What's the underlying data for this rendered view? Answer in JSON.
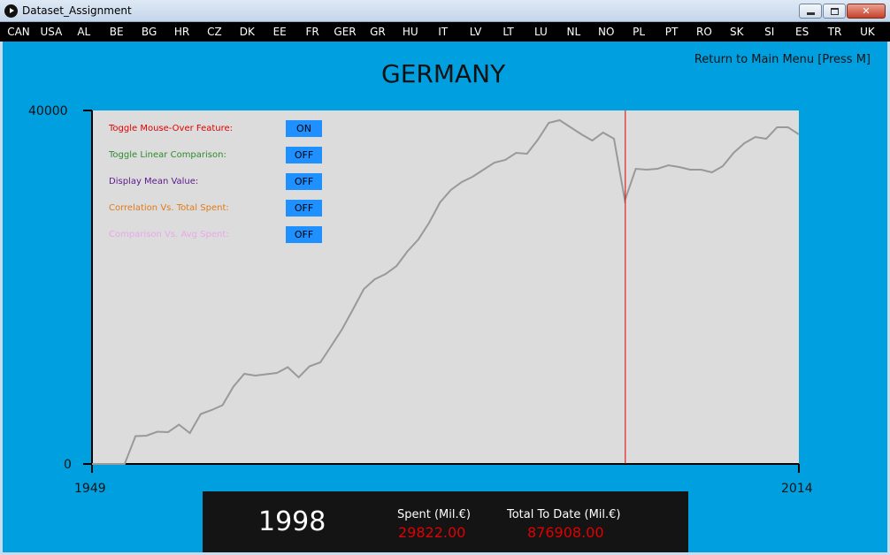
{
  "window": {
    "title": "Dataset_Assignment"
  },
  "countries": [
    "CAN",
    "USA",
    "AL",
    "BE",
    "BG",
    "HR",
    "CZ",
    "DK",
    "EE",
    "FR",
    "GER",
    "GR",
    "HU",
    "IT",
    "LV",
    "LT",
    "LU",
    "NL",
    "NO",
    "PL",
    "PT",
    "RO",
    "SK",
    "SI",
    "ES",
    "TR",
    "UK"
  ],
  "header": {
    "country_title": "GERMANY",
    "return_menu": "Return to Main Menu [Press M]"
  },
  "toggles": [
    {
      "label": "Toggle Mouse-Over Feature:",
      "state": "ON",
      "color": "#e00000"
    },
    {
      "label": "Toggle Linear Comparison:",
      "state": "OFF",
      "color": "#2e8b2e"
    },
    {
      "label": "Display Mean Value:",
      "state": "OFF",
      "color": "#5a1a8c"
    },
    {
      "label": "Correlation Vs. Total Spent:",
      "state": "OFF",
      "color": "#e07a1a"
    },
    {
      "label": "Comparison Vs. Avg Spent:",
      "state": "OFF",
      "color": "#e8a8e8"
    }
  ],
  "info": {
    "year": "1998",
    "spent_label": "Spent (Mil.€)",
    "spent_value": "29822.00",
    "total_label": "Total To Date (Mil.€)",
    "total_value": "876908.00"
  },
  "colors": {
    "background": "#00a0e0",
    "plot_background": "#dcdcdc",
    "line": "#999999",
    "cursor_line": "#e00000",
    "button": "#1e90ff"
  },
  "chart_data": {
    "type": "line",
    "xlim": [
      1949,
      2014
    ],
    "ylim": [
      0,
      40000
    ],
    "x_tick_labels": [
      "1949",
      "2014"
    ],
    "y_tick_labels": [
      "0",
      "40000"
    ],
    "highlight_year": 1998,
    "series": [
      {
        "x": [
          1949,
          1950,
          1951,
          1952,
          1953,
          1954,
          1955,
          1956,
          1957,
          1958,
          1959,
          1960,
          1961,
          1962,
          1963,
          1964,
          1965,
          1966,
          1967,
          1968,
          1969,
          1970,
          1971,
          1972,
          1973,
          1974,
          1975,
          1976,
          1977,
          1978,
          1979,
          1980,
          1981,
          1982,
          1983,
          1984,
          1985,
          1986,
          1987,
          1988,
          1989,
          1990,
          1991,
          1992,
          1993,
          1994,
          1995,
          1996,
          1997,
          1998,
          1999,
          2000,
          2001,
          2002,
          2003,
          2004,
          2005,
          2006,
          2007,
          2008,
          2009,
          2010,
          2011,
          2012,
          2013,
          2014
        ],
        "y": [
          0,
          0,
          0,
          0,
          3150,
          3200,
          3650,
          3600,
          4450,
          3500,
          5650,
          6100,
          6650,
          8750,
          10200,
          10000,
          10150,
          10300,
          10950,
          9800,
          11050,
          11500,
          13350,
          15250,
          17500,
          19800,
          20900,
          21500,
          22400,
          24050,
          25400,
          27300,
          29600,
          31000,
          31900,
          32500,
          33300,
          34100,
          34400,
          35200,
          35100,
          36700,
          38600,
          38900,
          38100,
          37300,
          36600,
          37500,
          36800,
          29822,
          33400,
          33300,
          33400,
          33800,
          33600,
          33300,
          33300,
          33000,
          33700,
          35200,
          36300,
          37000,
          36800,
          38100,
          38100,
          37300
        ],
        "values_note": "",
        "y_display": []
      }
    ]
  }
}
